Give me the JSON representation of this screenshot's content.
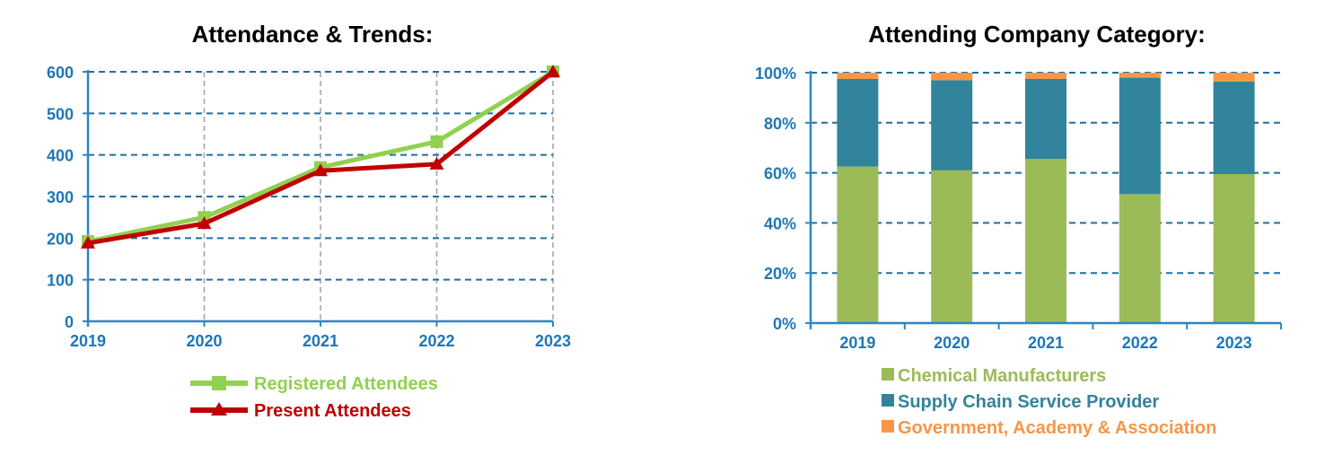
{
  "chart_data": [
    {
      "type": "line",
      "title": "Attendance & Trends:",
      "categories": [
        "2019",
        "2020",
        "2021",
        "2022",
        "2023"
      ],
      "ylim": [
        0,
        600
      ],
      "yticks": [
        "0",
        "100",
        "200",
        "300",
        "400",
        "500",
        "600"
      ],
      "grid": true,
      "legend_position": "bottom",
      "series": [
        {
          "name": "Registered Attendees",
          "values": [
            192,
            250,
            370,
            432,
            600
          ],
          "color": "#92d050",
          "marker": "square"
        },
        {
          "name": "Present Attendees",
          "values": [
            188,
            235,
            362,
            378,
            600
          ],
          "color": "#c00000",
          "marker": "triangle"
        }
      ],
      "colors": {
        "axis": "#2e86c1",
        "grid": "#1f6fa3",
        "vgrid": "#a6a6a6",
        "tick": "#1f77b4"
      }
    },
    {
      "type": "bar",
      "stacked": true,
      "title": "Attending Company Category:",
      "categories": [
        "2019",
        "2020",
        "2021",
        "2022",
        "2023"
      ],
      "ylim": [
        0,
        100
      ],
      "yticks": [
        "0%",
        "20%",
        "40%",
        "60%",
        "80%",
        "100%"
      ],
      "grid": true,
      "legend_position": "bottom",
      "series": [
        {
          "name": "Chemical Manufacturers",
          "values": [
            62.5,
            61,
            65.5,
            51.5,
            59.5
          ],
          "color": "#9bbb59"
        },
        {
          "name": "Supply Chain Service Provider",
          "values": [
            35,
            36,
            32,
            46.5,
            37
          ],
          "color": "#31849b"
        },
        {
          "name": "Government, Academy & Association",
          "values": [
            2.5,
            3,
            2.5,
            2,
            3.5
          ],
          "color": "#f79646"
        }
      ],
      "colors": {
        "axis": "#2e86c1",
        "grid": "#1f6fa3",
        "tick": "#1f77b4"
      }
    }
  ]
}
